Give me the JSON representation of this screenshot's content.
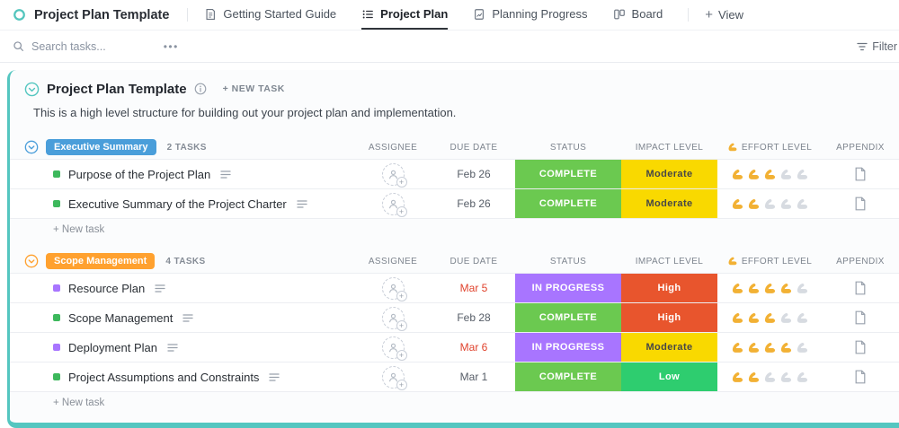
{
  "topbar": {
    "title": "Project Plan Template",
    "tabs": [
      {
        "label": "Getting Started Guide"
      },
      {
        "label": "Project Plan"
      },
      {
        "label": "Planning Progress"
      },
      {
        "label": "Board"
      }
    ],
    "add_view": "View"
  },
  "toolbar": {
    "search_placeholder": "Search tasks...",
    "more": "•••",
    "filter": "Filter"
  },
  "page": {
    "title": "Project Plan Template",
    "new_task": "+ NEW TASK",
    "description": "This is a high level structure for building out your project plan and implementation."
  },
  "columns": {
    "assignee": "ASSIGNEE",
    "due": "DUE DATE",
    "status": "STATUS",
    "impact": "IMPACT LEVEL",
    "effort": "EFFORT LEVEL",
    "appendix": "APPENDIX"
  },
  "colors": {
    "teal_accent": "#54c6c0",
    "complete": "#6bc950",
    "in_progress": "#a875ff",
    "moderate": "#f9d900",
    "high": "#e8552d",
    "low": "#2ecd6f",
    "overdue_red": "#e0432d",
    "effort_filled": "#f2b134",
    "effort_empty": "#d7dbe1"
  },
  "icons": {
    "list-view-icon": "○",
    "search-icon": "🔍",
    "ellipsis-icon": "•••",
    "filter-icon": "≡",
    "info-icon": "ⓘ",
    "chevron-down-icon": "⌄",
    "add-icon": "+",
    "effort-arm-icon": "💪",
    "appendix-doc-icon": "📄",
    "description-lines-icon": "≡",
    "assignee-add-icon": "+"
  },
  "effort_max": 5,
  "groups": [
    {
      "name": "Executive Summary",
      "badge_color": "#4a9eda",
      "count": "2 TASKS",
      "new_task": "+ New task",
      "tasks": [
        {
          "title": "Purpose of the Project Plan",
          "bullet": "#3db85c",
          "due": "Feb 26",
          "overdue": false,
          "status": "COMPLETE",
          "status_color": "#6bc950",
          "impact": "Moderate",
          "impact_color": "#f9d900",
          "impact_dark_text": true,
          "effort": 3
        },
        {
          "title": "Executive Summary of the Project Charter",
          "bullet": "#3db85c",
          "due": "Feb 26",
          "overdue": false,
          "status": "COMPLETE",
          "status_color": "#6bc950",
          "impact": "Moderate",
          "impact_color": "#f9d900",
          "impact_dark_text": true,
          "effort": 2
        }
      ]
    },
    {
      "name": "Scope Management",
      "badge_color": "#ffa12f",
      "count": "4 TASKS",
      "new_task": "+ New task",
      "tasks": [
        {
          "title": "Resource Plan",
          "bullet": "#a875ff",
          "due": "Mar 5",
          "overdue": true,
          "status": "IN PROGRESS",
          "status_color": "#a875ff",
          "impact": "High",
          "impact_color": "#e8552d",
          "impact_dark_text": false,
          "effort": 4
        },
        {
          "title": "Scope Management",
          "bullet": "#3db85c",
          "due": "Feb 28",
          "overdue": false,
          "status": "COMPLETE",
          "status_color": "#6bc950",
          "impact": "High",
          "impact_color": "#e8552d",
          "impact_dark_text": false,
          "effort": 3
        },
        {
          "title": "Deployment Plan",
          "bullet": "#a875ff",
          "due": "Mar 6",
          "overdue": true,
          "status": "IN PROGRESS",
          "status_color": "#a875ff",
          "impact": "Moderate",
          "impact_color": "#f9d900",
          "impact_dark_text": true,
          "effort": 4
        },
        {
          "title": "Project Assumptions and Constraints",
          "bullet": "#3db85c",
          "due": "Mar 1",
          "overdue": false,
          "status": "COMPLETE",
          "status_color": "#6bc950",
          "impact": "Low",
          "impact_color": "#2ecd6f",
          "impact_dark_text": false,
          "effort": 2
        }
      ]
    }
  ]
}
